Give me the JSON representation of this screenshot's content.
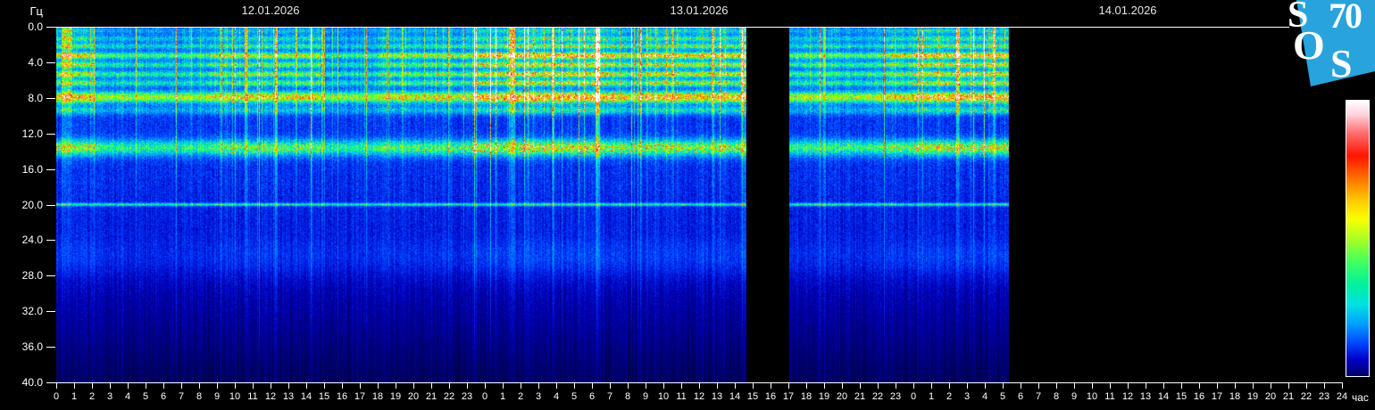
{
  "page": {
    "background": "#000000"
  },
  "logo": {
    "color": "#29A3DC",
    "letters": [
      "S",
      "70",
      "O",
      "S"
    ]
  },
  "chart_data": {
    "type": "heatmap",
    "subtype": "schumann-resonance-spectrogram",
    "dates": [
      "12.01.2026",
      "13.01.2026",
      "14.01.2026"
    ],
    "ylabel": "Гц",
    "xlabel": "час",
    "freq_axis": {
      "min_hz": 0,
      "max_hz": 40,
      "tick_step_hz": 4,
      "tick_labels": [
        "0.0",
        "4.0",
        "8.0",
        "12.0",
        "16.0",
        "20.0",
        "24.0",
        "28.0",
        "32.0",
        "36.0",
        "40.0"
      ]
    },
    "time_axis": {
      "days": 3,
      "hours_total": 72,
      "tick_step_h": 1,
      "unit": "час",
      "tick_labels": [
        "0",
        "1",
        "2",
        "3",
        "4",
        "5",
        "6",
        "7",
        "8",
        "9",
        "10",
        "11",
        "12",
        "13",
        "14",
        "15",
        "16",
        "17",
        "18",
        "19",
        "20",
        "21",
        "22",
        "23",
        "0",
        "1",
        "2",
        "3",
        "4",
        "5",
        "6",
        "7",
        "8",
        "9",
        "10",
        "11",
        "12",
        "13",
        "14",
        "15",
        "16",
        "17",
        "18",
        "19",
        "20",
        "21",
        "22",
        "23",
        "0",
        "1",
        "2",
        "3",
        "4",
        "5",
        "6",
        "7",
        "8",
        "9",
        "10",
        "11",
        "12",
        "13",
        "14",
        "15",
        "16",
        "17",
        "18",
        "19",
        "20",
        "21",
        "22",
        "23",
        "24"
      ]
    },
    "resonance_bands": [
      {
        "freq_hz": 0.4,
        "width_hz": 0.3,
        "amplitude": 0.18,
        "mode": "act"
      },
      {
        "freq_hz": 1.3,
        "width_hz": 0.28,
        "amplitude": 0.22,
        "mode": "act"
      },
      {
        "freq_hz": 2.15,
        "width_hz": 0.25,
        "amplitude": 0.26,
        "mode": "act"
      },
      {
        "freq_hz": 3.2,
        "width_hz": 0.3,
        "amplitude": 0.38,
        "mode": "act"
      },
      {
        "freq_hz": 4.25,
        "width_hz": 0.28,
        "amplitude": 0.3,
        "mode": "act"
      },
      {
        "freq_hz": 5.3,
        "width_hz": 0.28,
        "amplitude": 0.32,
        "mode": "act"
      },
      {
        "freq_hz": 6.3,
        "width_hz": 0.28,
        "amplitude": 0.28,
        "mode": "act"
      },
      {
        "freq_hz": 7.9,
        "width_hz": 0.5,
        "amplitude": 0.42,
        "mode": "semi"
      },
      {
        "freq_hz": 9.4,
        "width_hz": 0.35,
        "amplitude": 0.18,
        "mode": "act"
      },
      {
        "freq_hz": 13.6,
        "width_hz": 0.7,
        "amplitude": 0.32,
        "mode": "semi"
      },
      {
        "freq_hz": 20.0,
        "width_hz": 0.13,
        "amplitude": 0.3,
        "mode": "const"
      },
      {
        "freq_hz": 26.0,
        "width_hz": 1.6,
        "amplitude": 0.07,
        "mode": "act"
      }
    ],
    "background_profile": [
      [
        0,
        0.31
      ],
      [
        6,
        0.33
      ],
      [
        10,
        0.31
      ],
      [
        14,
        0.3
      ],
      [
        18,
        0.285
      ],
      [
        22,
        0.26
      ],
      [
        26,
        0.225
      ],
      [
        30,
        0.185
      ],
      [
        34,
        0.145
      ],
      [
        38,
        0.1
      ],
      [
        40,
        0.08
      ]
    ],
    "activity_segments": [
      {
        "start_h": 0.0,
        "end_h": 2.2,
        "level": 1.12
      },
      {
        "start_h": 2.2,
        "end_h": 8.5,
        "level": 0.78
      },
      {
        "start_h": 8.5,
        "end_h": 15.0,
        "level": 1.0
      },
      {
        "start_h": 15.0,
        "end_h": 18.0,
        "level": 0.74
      },
      {
        "start_h": 18.0,
        "end_h": 23.3,
        "level": 0.95
      },
      {
        "start_h": 23.3,
        "end_h": 31.3,
        "level": 1.32
      },
      {
        "start_h": 31.3,
        "end_h": 33.0,
        "level": 1.05
      },
      {
        "start_h": 33.0,
        "end_h": 38.65,
        "level": 1.2
      },
      {
        "start_h": 41.05,
        "end_h": 46.5,
        "level": 0.85
      },
      {
        "start_h": 46.5,
        "end_h": 48.0,
        "level": 1.05
      },
      {
        "start_h": 48.0,
        "end_h": 53.35,
        "level": 1.28
      }
    ],
    "transient_events": [
      {
        "hour": 0.6,
        "width_h": 0.5,
        "boost": 0.25
      },
      {
        "hour": 10.6,
        "width_h": 0.15,
        "boost": 0.3
      },
      {
        "hour": 12.3,
        "width_h": 0.12,
        "boost": 0.35
      },
      {
        "hour": 13.4,
        "width_h": 0.1,
        "boost": 0.3
      },
      {
        "hour": 19.4,
        "width_h": 0.1,
        "boost": 0.25
      },
      {
        "hour": 22.0,
        "width_h": 0.1,
        "boost": 0.2
      },
      {
        "hour": 25.5,
        "width_h": 0.3,
        "boost": 0.3
      },
      {
        "hour": 27.8,
        "width_h": 0.15,
        "boost": 0.3
      },
      {
        "hour": 30.3,
        "width_h": 0.22,
        "boost": 0.55
      },
      {
        "hour": 34.5,
        "width_h": 0.12,
        "boost": 0.3
      },
      {
        "hour": 36.8,
        "width_h": 0.1,
        "boost": 0.3
      },
      {
        "hour": 38.4,
        "width_h": 0.2,
        "boost": 0.4
      },
      {
        "hour": 43.0,
        "width_h": 0.1,
        "boost": 0.2
      },
      {
        "hour": 50.5,
        "width_h": 0.15,
        "boost": 0.3
      },
      {
        "hour": 52.5,
        "width_h": 0.2,
        "boost": 0.35
      }
    ],
    "data_gaps_hours": [
      [
        38.65,
        41.05
      ],
      [
        53.35,
        72.0
      ]
    ],
    "colormap_stops": [
      {
        "v": 0.0,
        "rgb": [
          0,
          0,
          40
        ]
      },
      {
        "v": 0.1,
        "rgb": [
          0,
          0,
          110
        ]
      },
      {
        "v": 0.2,
        "rgb": [
          0,
          0,
          190
        ]
      },
      {
        "v": 0.32,
        "rgb": [
          0,
          60,
          255
        ]
      },
      {
        "v": 0.44,
        "rgb": [
          0,
          150,
          255
        ]
      },
      {
        "v": 0.54,
        "rgb": [
          0,
          230,
          210
        ]
      },
      {
        "v": 0.63,
        "rgb": [
          40,
          255,
          120
        ]
      },
      {
        "v": 0.72,
        "rgb": [
          170,
          255,
          0
        ]
      },
      {
        "v": 0.8,
        "rgb": [
          255,
          215,
          0
        ]
      },
      {
        "v": 0.87,
        "rgb": [
          255,
          120,
          0
        ]
      },
      {
        "v": 0.93,
        "rgb": [
          255,
          30,
          0
        ]
      },
      {
        "v": 0.97,
        "rgb": [
          255,
          170,
          150
        ]
      },
      {
        "v": 1.0,
        "rgb": [
          255,
          255,
          255
        ]
      }
    ],
    "colorbar_stops": [
      {
        "pos": 0,
        "color": "#FFFFFF"
      },
      {
        "pos": 5,
        "color": "#FFD2DC"
      },
      {
        "pos": 12,
        "color": "#FF6A6A"
      },
      {
        "pos": 20,
        "color": "#FF1400"
      },
      {
        "pos": 28,
        "color": "#FF6E00"
      },
      {
        "pos": 36,
        "color": "#FFC800"
      },
      {
        "pos": 43,
        "color": "#FAFF00"
      },
      {
        "pos": 51,
        "color": "#A0FF28"
      },
      {
        "pos": 59,
        "color": "#3CFF64"
      },
      {
        "pos": 67,
        "color": "#00F0A0"
      },
      {
        "pos": 74,
        "color": "#00E1E1"
      },
      {
        "pos": 81,
        "color": "#00A0FF"
      },
      {
        "pos": 88,
        "color": "#0046FF"
      },
      {
        "pos": 94,
        "color": "#0000C8"
      },
      {
        "pos": 100,
        "color": "#000064"
      }
    ],
    "noise": {
      "row": 0.5,
      "streak_prob": 0.09,
      "streak_boost": 0.5,
      "speckle_threshold": 0.6,
      "speckle_amp": 0.33
    },
    "render_seed": 20260112
  }
}
